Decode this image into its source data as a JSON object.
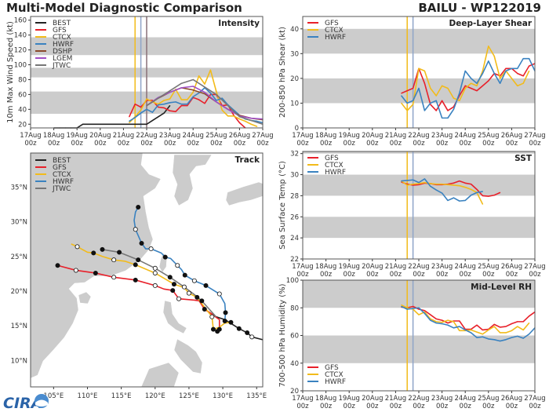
{
  "header": {
    "title": "Multi-Model Diagnostic Comparison",
    "storm": "BAILU - WP122019"
  },
  "logo": {
    "text": "CIRA"
  },
  "colors": {
    "BEST": "#222222",
    "GFS": "#e8202a",
    "CTCX": "#f2bb1a",
    "HWRF": "#3a82c0",
    "DSHP": "#8b4a2b",
    "LGEM": "#a04fc4",
    "JTWC": "#777777",
    "band": "#cccccc",
    "land": "#cccccc"
  },
  "x_ticks": [
    "17Aug 00z",
    "18Aug 00z",
    "19Aug 00z",
    "20Aug 00z",
    "21Aug 00z",
    "22Aug 00z",
    "23Aug 00z",
    "24Aug 00z",
    "25Aug 00z",
    "26Aug 00z",
    "27Aug 00z"
  ],
  "chart_data": [
    {
      "id": "intensity",
      "type": "line",
      "title": "Intensity",
      "ylabel": "10m Max Wind Speed (kt)",
      "xlim": [
        "17Aug 00z",
        "27Aug 00z"
      ],
      "ylim": [
        15,
        165
      ],
      "yticks": [
        20,
        40,
        60,
        80,
        100,
        120,
        140,
        160
      ],
      "bands": [
        [
          34,
          64
        ],
        [
          83,
          96
        ],
        [
          113,
          137
        ]
      ],
      "vlines": [
        {
          "x": "21Aug 12z",
          "color": "#f2bb1a"
        },
        {
          "x": "21Aug 18z",
          "color": "#8ea4c8"
        },
        {
          "x": "22Aug 00z",
          "color": "#8a7078"
        }
      ],
      "legend": "top-left",
      "series": [
        {
          "name": "BEST",
          "start": "18Aug 00z",
          "interval_h": 6,
          "values": [
            15,
            15,
            15,
            15,
            15,
            20,
            20,
            20,
            20,
            20,
            20,
            20,
            20,
            20,
            20,
            20,
            20,
            25,
            30,
            35,
            45
          ]
        },
        {
          "name": "GFS",
          "start": "21Aug 06z",
          "interval_h": 6,
          "values": [
            30,
            47,
            43,
            52,
            52,
            43,
            42,
            38,
            37,
            45,
            45,
            56,
            53,
            48,
            60,
            60,
            45,
            46,
            32,
            22,
            15
          ]
        },
        {
          "name": "CTCX",
          "start": "21Aug 06z",
          "interval_h": 6,
          "values": [
            22,
            30,
            39,
            54,
            50,
            47,
            52,
            54,
            67,
            53,
            53,
            63,
            85,
            74,
            93,
            64,
            39,
            31,
            31,
            27,
            24,
            20,
            17
          ]
        },
        {
          "name": "HWRF",
          "start": "21Aug 06z",
          "interval_h": 6,
          "values": [
            24,
            29,
            35,
            40,
            36,
            46,
            47,
            49,
            50,
            47,
            47,
            57,
            62,
            69,
            62,
            52,
            55,
            46,
            39,
            32,
            27,
            25,
            24,
            22
          ]
        },
        {
          "name": "DSHP",
          "start": "22Aug 00z",
          "interval_h": 12,
          "values": [
            45,
            55,
            63,
            69,
            66,
            61,
            50,
            40,
            32,
            28,
            26
          ]
        },
        {
          "name": "LGEM",
          "start": "22Aug 00z",
          "interval_h": 12,
          "values": [
            45,
            56,
            63,
            69,
            71,
            63,
            50,
            40,
            31,
            28,
            27
          ]
        },
        {
          "name": "JTWC",
          "start": "22Aug 00z",
          "interval_h": 12,
          "values": [
            45,
            55,
            65,
            75,
            80,
            70,
            60,
            45,
            30,
            25,
            20
          ]
        }
      ]
    },
    {
      "id": "shear",
      "type": "line",
      "title": "Deep-Layer Shear",
      "ylabel": "200-850 hPa Shear (kt)",
      "xlim": [
        "17Aug 00z",
        "27Aug 00z"
      ],
      "ylim": [
        0,
        45
      ],
      "yticks": [
        0,
        10,
        20,
        30,
        40
      ],
      "bands": [
        [
          10,
          20
        ],
        [
          30,
          40
        ]
      ],
      "vlines": [
        {
          "x": "21Aug 12z",
          "color": "#f2bb1a"
        },
        {
          "x": "21Aug 18z",
          "color": "#8ea4c8"
        }
      ],
      "legend": "top-left",
      "series": [
        {
          "name": "GFS",
          "start": "21Aug 06z",
          "interval_h": 6,
          "values": [
            14,
            15,
            16,
            24,
            18,
            9.5,
            7,
            11,
            7,
            8.5,
            13,
            17,
            16,
            15,
            17,
            19,
            22,
            21,
            24,
            24,
            22,
            21,
            25,
            26
          ]
        },
        {
          "name": "CTCX",
          "start": "21Aug 06z",
          "interval_h": 6,
          "values": [
            10,
            7,
            9.5,
            24,
            23,
            16,
            13,
            17,
            16,
            12,
            11,
            16,
            18,
            17,
            23,
            33,
            29,
            20,
            23,
            20,
            17,
            18,
            23
          ]
        },
        {
          "name": "HWRF",
          "start": "21Aug 06z",
          "interval_h": 6,
          "values": [
            13,
            10,
            11,
            16,
            7,
            10,
            11,
            4,
            4,
            7.5,
            14,
            23,
            20,
            18,
            22,
            27,
            22,
            18,
            23,
            24,
            24,
            28,
            28,
            23
          ]
        }
      ]
    },
    {
      "id": "sst",
      "type": "line",
      "title": "SST",
      "ylabel": "Sea Surface Temp (°C)",
      "xlim": [
        "17Aug 00z",
        "27Aug 00z"
      ],
      "ylim": [
        22,
        32.2
      ],
      "yticks": [
        22,
        24,
        26,
        28,
        30,
        32
      ],
      "bands": [
        [
          24,
          26
        ],
        [
          28,
          30
        ],
        [
          32,
          32.2
        ]
      ],
      "vlines": [
        {
          "x": "21Aug 12z",
          "color": "#f2bb1a"
        },
        {
          "x": "21Aug 18z",
          "color": "#8ea4c8"
        }
      ],
      "legend": "top-left",
      "series": [
        {
          "name": "GFS",
          "start": "21Aug 06z",
          "interval_h": 6,
          "values": [
            29.3,
            29.1,
            29.0,
            29.05,
            29.2,
            29.15,
            29.05,
            29.05,
            29.1,
            29.2,
            29.4,
            29.2,
            29.1,
            28.6,
            28.0,
            27.95,
            28.05,
            28.3
          ]
        },
        {
          "name": "CTCX",
          "start": "21Aug 06z",
          "interval_h": 6,
          "values": [
            29.4,
            29.0,
            29.1,
            29.15,
            29.25,
            29.15,
            29.1,
            29.1,
            29.05,
            29.0,
            28.95,
            28.8,
            28.6,
            28.3,
            27.2
          ]
        },
        {
          "name": "HWRF",
          "start": "21Aug 06z",
          "interval_h": 6,
          "values": [
            29.4,
            29.45,
            29.5,
            29.25,
            29.6,
            28.9,
            28.55,
            28.25,
            27.55,
            27.8,
            27.5,
            27.55,
            28.05,
            28.3,
            28.4
          ]
        }
      ]
    },
    {
      "id": "rh",
      "type": "line",
      "title": "Mid-Level RH",
      "ylabel": "700-500 hPa Humidity (%)",
      "xlim": [
        "17Aug 00z",
        "27Aug 00z"
      ],
      "ylim": [
        20,
        100
      ],
      "yticks": [
        20,
        40,
        60,
        80,
        100
      ],
      "bands": [
        [
          40,
          60
        ],
        [
          80,
          100
        ]
      ],
      "vlines": [
        {
          "x": "21Aug 12z",
          "color": "#f2bb1a"
        },
        {
          "x": "21Aug 18z",
          "color": "#8ea4c8"
        }
      ],
      "legend": "bottom-left",
      "series": [
        {
          "name": "GFS",
          "start": "21Aug 06z",
          "interval_h": 6,
          "values": [
            80.5,
            80,
            81,
            79,
            78,
            75,
            72,
            71,
            69,
            70.5,
            70.5,
            64.5,
            64.5,
            67.5,
            64,
            64.5,
            68,
            66,
            66.5,
            68.5,
            70,
            70,
            74,
            77
          ]
        },
        {
          "name": "CTCX",
          "start": "21Aug 06z",
          "interval_h": 6,
          "values": [
            82,
            80,
            79,
            75,
            77,
            72,
            70,
            69.5,
            71,
            70,
            63.5,
            63.5,
            64,
            62.5,
            61,
            64,
            66.5,
            62,
            62,
            63.5,
            66.5,
            64,
            69
          ]
        },
        {
          "name": "HWRF",
          "start": "21Aug 06z",
          "interval_h": 6,
          "values": [
            81,
            79,
            79.5,
            80,
            76,
            71,
            69,
            68.5,
            67.5,
            65.5,
            66.5,
            64,
            62,
            58.5,
            59,
            57.5,
            57,
            56,
            57,
            58.5,
            59.5,
            58,
            61,
            65.5
          ]
        }
      ]
    },
    {
      "id": "track",
      "type": "line",
      "title": "Track",
      "xlim": [
        101.6,
        135.9
      ],
      "ylim": [
        6.2,
        39.9
      ],
      "xticks": [
        105,
        110,
        115,
        120,
        125,
        130,
        135
      ],
      "xtick_labels": [
        "105°E",
        "110°E",
        "115°E",
        "120°E",
        "125°E",
        "130°E",
        "135°E"
      ],
      "yticks": [
        10,
        15,
        20,
        25,
        30,
        35
      ],
      "ytick_labels": [
        "10°N",
        "15°N",
        "20°N",
        "25°N",
        "30°N",
        "35°N"
      ],
      "legend": "top-left",
      "series": [
        {
          "name": "BEST",
          "points": [
            [
              135.9,
              13.0,
              ""
            ],
            [
              134.3,
              13.4,
              "o"
            ],
            [
              133.6,
              14.0,
              "f"
            ],
            [
              132.4,
              14.6,
              "f"
            ],
            [
              130.3,
              15.9,
              ""
            ],
            [
              129.0,
              16.3,
              ""
            ]
          ]
        },
        {
          "name": "GFS",
          "points": [
            [
              129.0,
              16.3,
              ""
            ],
            [
              127.3,
              17.4,
              ""
            ],
            [
              129.5,
              15.9,
              ""
            ],
            [
              129.5,
              14.5,
              "f"
            ],
            [
              129.2,
              14.2,
              "f"
            ]
          ]
        },
        {
          "name": "GFS",
          "points": [
            [
              129.0,
              16.3,
              ""
            ],
            [
              127.3,
              17.4,
              "f"
            ],
            [
              126.5,
              18.6,
              ""
            ],
            [
              125.8,
              18.7,
              ""
            ],
            [
              123.5,
              18.9,
              "o"
            ],
            [
              122.6,
              20.1,
              "f"
            ],
            [
              121.3,
              20.3,
              ""
            ],
            [
              120.0,
              20.8,
              "o"
            ],
            [
              117.1,
              21.6,
              "f"
            ],
            [
              113.9,
              22.0,
              "o"
            ],
            [
              111.2,
              22.6,
              "f"
            ],
            [
              108.3,
              23.0,
              "o"
            ],
            [
              105.6,
              23.7,
              "f"
            ]
          ]
        },
        {
          "name": "CTCX",
          "points": [
            [
              131.2,
              15.5,
              "f"
            ],
            [
              130.3,
              15.4,
              ""
            ],
            [
              129.5,
              14.8,
              ""
            ],
            [
              128.6,
              14.5,
              "f"
            ],
            [
              128.4,
              16.3,
              "o"
            ],
            [
              126.9,
              18.2,
              ""
            ],
            [
              126.2,
              19.1,
              "f"
            ],
            [
              125.0,
              19.7,
              "o"
            ],
            [
              124.3,
              20.5,
              ""
            ],
            [
              122.8,
              21.0,
              "f"
            ],
            [
              120.0,
              22.6,
              "o"
            ],
            [
              117.1,
              23.8,
              "f"
            ],
            [
              115.6,
              24.3,
              ""
            ],
            [
              113.9,
              24.5,
              "o"
            ],
            [
              112.2,
              25.0,
              ""
            ],
            [
              110.9,
              25.5,
              "f"
            ],
            [
              110.0,
              25.6,
              ""
            ],
            [
              108.5,
              26.4,
              "o"
            ],
            [
              107.6,
              26.8,
              ""
            ]
          ]
        },
        {
          "name": "HWRF",
          "points": [
            [
              130.3,
              15.7,
              "f"
            ],
            [
              130.4,
              16.9,
              "f"
            ],
            [
              130.3,
              18.2,
              ""
            ],
            [
              129.5,
              19.6,
              "o"
            ],
            [
              127.5,
              20.8,
              "f"
            ],
            [
              125.8,
              21.5,
              "o"
            ],
            [
              124.4,
              22.3,
              "f"
            ],
            [
              123.9,
              23.1,
              ""
            ],
            [
              123.3,
              23.7,
              "o"
            ],
            [
              122.3,
              24.7,
              ""
            ],
            [
              121.5,
              24.9,
              "f"
            ],
            [
              120.9,
              25.5,
              ""
            ],
            [
              119.4,
              26.1,
              "o"
            ],
            [
              118.6,
              26.1,
              ""
            ],
            [
              118.0,
              26.9,
              "f"
            ],
            [
              117.1,
              28.9,
              "o"
            ],
            [
              116.9,
              30.2,
              ""
            ],
            [
              117.1,
              31.4,
              ""
            ],
            [
              117.5,
              32.1,
              "f"
            ]
          ]
        },
        {
          "name": "JTWC",
          "points": [
            [
              129.0,
              16.3,
              ""
            ],
            [
              126.9,
              18.6,
              "f"
            ],
            [
              125.8,
              19.5,
              ""
            ],
            [
              124.3,
              20.6,
              "o"
            ],
            [
              122.2,
              22.0,
              "f"
            ],
            [
              120.0,
              23.3,
              "o"
            ],
            [
              117.5,
              24.5,
              "f"
            ],
            [
              114.7,
              25.6,
              "f"
            ],
            [
              112.2,
              26.0,
              "f"
            ]
          ]
        }
      ],
      "legend_entries": [
        "BEST",
        "GFS",
        "CTCX",
        "HWRF",
        "JTWC"
      ]
    }
  ]
}
